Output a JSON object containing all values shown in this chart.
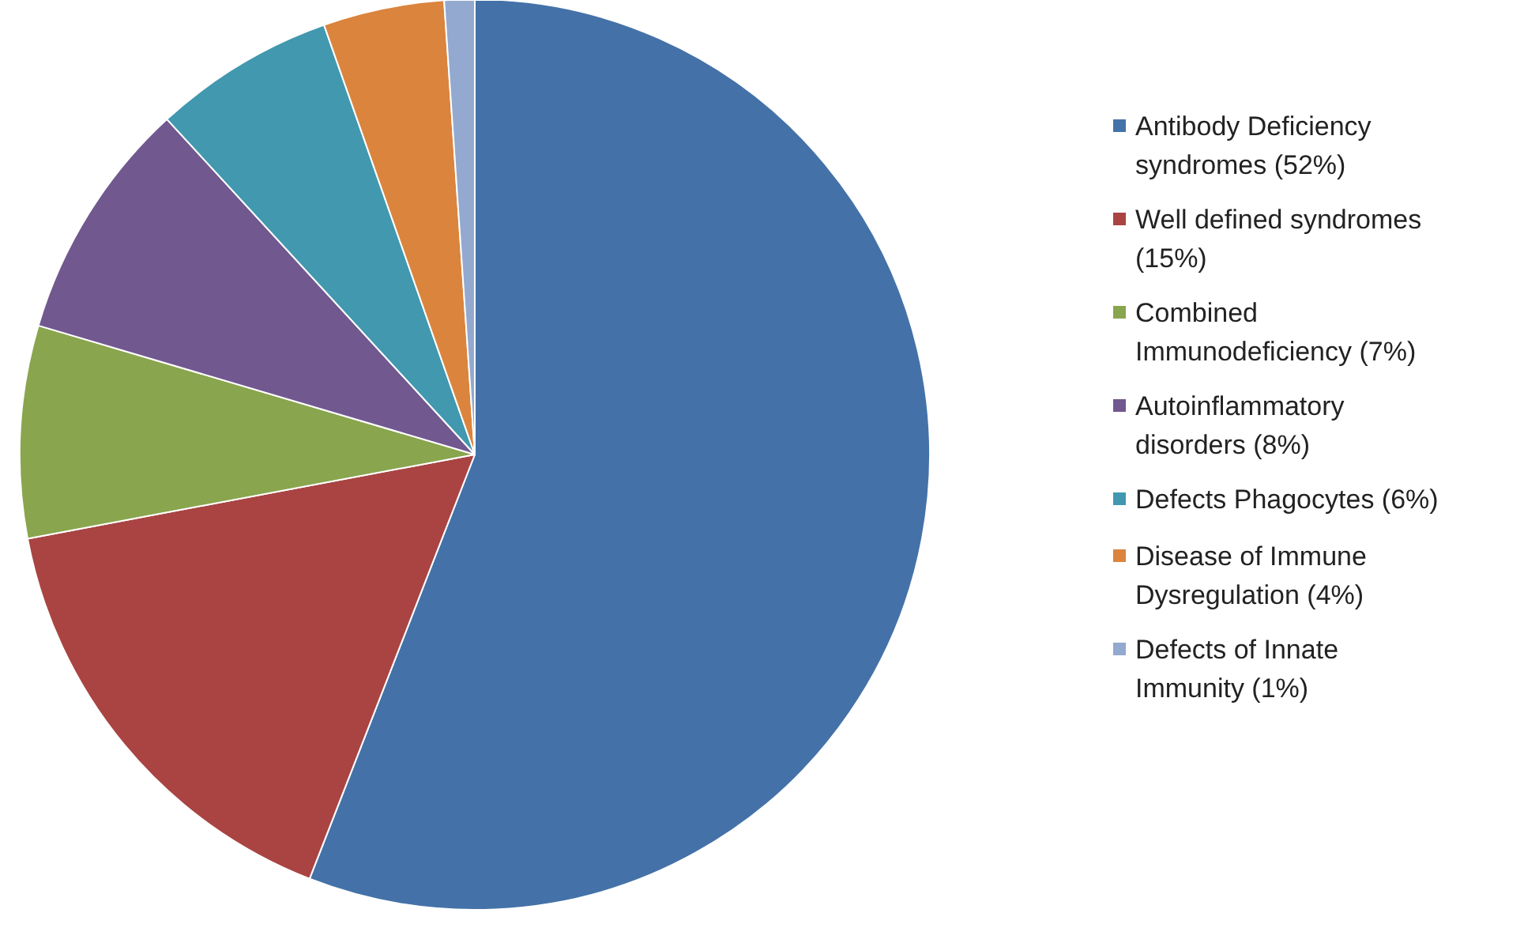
{
  "chart_data": {
    "type": "pie",
    "categories": [
      "Antibody Deficiency syndromes (52%)",
      "Well defined syndromes (15%)",
      "Combined Immunodeficiency (7%)",
      "Autoinflammatory disorders (8%)",
      "Defects Phagocytes (6%)",
      "Disease of Immune Dysregulation (4%)",
      "Defects of Innate Immunity (1%)"
    ],
    "values": [
      52,
      15,
      7,
      8,
      6,
      4,
      1
    ],
    "colors": [
      "#4472a8",
      "#a94442",
      "#89a54e",
      "#71588f",
      "#4198af",
      "#db843d",
      "#93a9cf"
    ],
    "legend": "right"
  }
}
